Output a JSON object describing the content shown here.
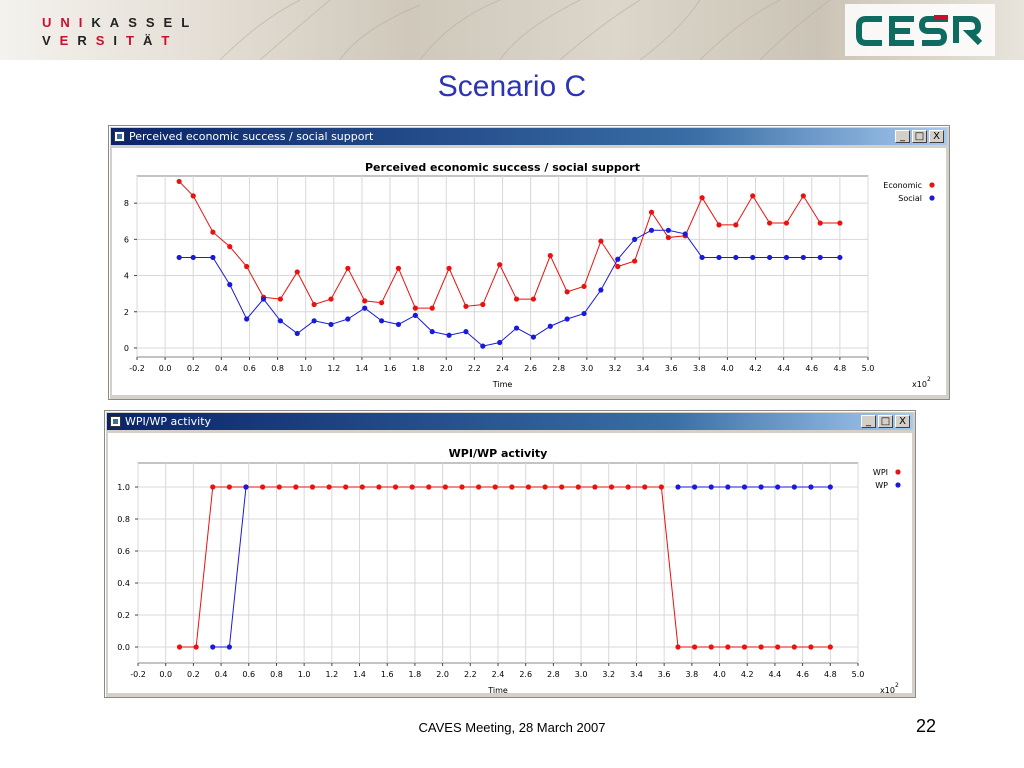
{
  "header": {
    "logo_line1": [
      "U",
      "N",
      "I",
      "K",
      "A",
      "S",
      "S",
      "E",
      "L"
    ],
    "logo_line2": [
      "V",
      "E",
      "R",
      "S",
      "I",
      "T",
      "Ä",
      "T"
    ],
    "cesr_logo": "CESR"
  },
  "slide": {
    "title": "Scenario C",
    "footer": "CAVES Meeting, 28 March 2007",
    "page_number": "22"
  },
  "windows": [
    {
      "title": "Perceived economic success / social support",
      "buttons": [
        "_",
        "□",
        "X"
      ]
    },
    {
      "title": "WPI/WP activity",
      "buttons": [
        "_",
        "□",
        "X"
      ]
    }
  ],
  "colors": {
    "red": "#e8120f",
    "blue": "#1a1adc",
    "accent": "#2b34b4"
  },
  "chart_data": [
    {
      "type": "line",
      "title": "Perceived economic success / social support",
      "xlabel": "Time",
      "x_multiplier": "x10",
      "x_multiplier_exp": "2",
      "xlim": [
        -0.2,
        5.0
      ],
      "ylim": [
        -0.5,
        9.5
      ],
      "xticks": [
        "-0.2",
        "0.0",
        "0.2",
        "0.4",
        "0.6",
        "0.8",
        "1.0",
        "1.2",
        "1.4",
        "1.6",
        "1.8",
        "2.0",
        "2.2",
        "2.4",
        "2.6",
        "2.8",
        "3.0",
        "3.2",
        "3.4",
        "3.6",
        "3.8",
        "4.0",
        "4.2",
        "4.4",
        "4.6",
        "4.8",
        "5.0"
      ],
      "yticks": [
        "0",
        "2",
        "4",
        "6",
        "8"
      ],
      "grid": true,
      "legend_position": "top-right",
      "x": [
        0.1,
        0.2,
        0.34,
        0.46,
        0.58,
        0.7,
        0.82,
        0.94,
        1.06,
        1.18,
        1.3,
        1.42,
        1.54,
        1.66,
        1.78,
        1.9,
        2.02,
        2.14,
        2.26,
        2.38,
        2.5,
        2.62,
        2.74,
        2.86,
        2.98,
        3.1,
        3.22,
        3.34,
        3.46,
        3.58,
        3.7,
        3.82,
        3.94,
        4.06,
        4.18,
        4.3,
        4.42,
        4.54,
        4.66,
        4.8
      ],
      "series": [
        {
          "name": "Economic",
          "color": "#e8120f",
          "values": [
            9.2,
            8.4,
            6.4,
            5.6,
            4.5,
            2.8,
            2.7,
            4.2,
            2.4,
            2.7,
            4.4,
            2.6,
            2.5,
            4.4,
            2.2,
            2.2,
            4.4,
            2.3,
            2.4,
            4.6,
            2.7,
            2.7,
            5.1,
            3.1,
            3.4,
            5.9,
            4.5,
            4.8,
            7.5,
            6.1,
            6.2,
            8.3,
            6.8,
            6.8,
            8.4,
            6.9,
            6.9,
            8.4,
            6.9,
            6.9
          ]
        },
        {
          "name": "Social",
          "color": "#1a1adc",
          "values": [
            5.0,
            5.0,
            5.0,
            3.5,
            1.6,
            2.7,
            1.5,
            0.8,
            1.5,
            1.3,
            1.6,
            2.2,
            1.5,
            1.3,
            1.8,
            0.9,
            0.7,
            0.9,
            0.1,
            0.3,
            1.1,
            0.6,
            1.2,
            1.6,
            1.9,
            3.2,
            4.9,
            6.0,
            6.5,
            6.5,
            6.3,
            5.0,
            5.0,
            5.0,
            5.0,
            5.0,
            5.0,
            5.0,
            5.0,
            5.0
          ]
        }
      ]
    },
    {
      "type": "line",
      "title": "WPI/WP activity",
      "xlabel": "Time",
      "x_multiplier": "x10",
      "x_multiplier_exp": "2",
      "xlim": [
        -0.2,
        5.0
      ],
      "ylim": [
        -0.1,
        1.15
      ],
      "xticks": [
        "-0.2",
        "0.0",
        "0.2",
        "0.4",
        "0.6",
        "0.8",
        "1.0",
        "1.2",
        "1.4",
        "1.6",
        "1.8",
        "2.0",
        "2.2",
        "2.4",
        "2.6",
        "2.8",
        "3.0",
        "3.2",
        "3.4",
        "3.6",
        "3.8",
        "4.0",
        "4.2",
        "4.4",
        "4.6",
        "4.8",
        "5.0"
      ],
      "yticks": [
        "0.0",
        "0.2",
        "0.4",
        "0.6",
        "0.8",
        "1.0"
      ],
      "grid": true,
      "legend_position": "top-right",
      "x": [
        0.1,
        0.22,
        0.34,
        0.46,
        0.58,
        0.7,
        0.82,
        0.94,
        1.06,
        1.18,
        1.3,
        1.42,
        1.54,
        1.66,
        1.78,
        1.9,
        2.02,
        2.14,
        2.26,
        2.38,
        2.5,
        2.62,
        2.74,
        2.86,
        2.98,
        3.1,
        3.22,
        3.34,
        3.46,
        3.58,
        3.7,
        3.82,
        3.94,
        4.06,
        4.18,
        4.3,
        4.42,
        4.54,
        4.66,
        4.8
      ],
      "series": [
        {
          "name": "WPI",
          "color": "#e8120f",
          "values": [
            0,
            0,
            1,
            1,
            1,
            1,
            1,
            1,
            1,
            1,
            1,
            1,
            1,
            1,
            1,
            1,
            1,
            1,
            1,
            1,
            1,
            1,
            1,
            1,
            1,
            1,
            1,
            1,
            1,
            1,
            0,
            0,
            0,
            0,
            0,
            0,
            0,
            0,
            0,
            0
          ]
        },
        {
          "name": "WP",
          "color": "#1a1adc",
          "values": [
            null,
            null,
            0,
            0,
            1,
            null,
            null,
            null,
            null,
            null,
            null,
            null,
            null,
            null,
            null,
            null,
            null,
            null,
            null,
            null,
            null,
            null,
            null,
            null,
            null,
            null,
            null,
            null,
            null,
            null,
            1,
            1,
            1,
            1,
            1,
            1,
            1,
            1,
            1,
            1
          ]
        }
      ]
    }
  ]
}
